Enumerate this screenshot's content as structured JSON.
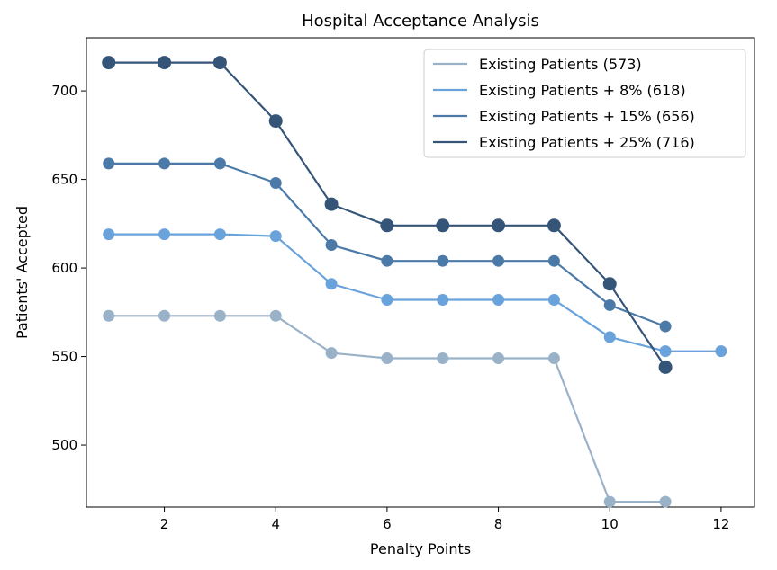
{
  "chart_data": {
    "type": "line",
    "title": "Hospital Acceptance Analysis",
    "xlabel": "Penalty Points",
    "ylabel": "Patients' Accepted",
    "xlim": [
      0.6,
      12.6
    ],
    "ylim": [
      465,
      730
    ],
    "xticks": [
      2,
      4,
      6,
      8,
      10,
      12
    ],
    "yticks": [
      500,
      550,
      600,
      650,
      700
    ],
    "grid": false,
    "legend_position": "top-right",
    "series": [
      {
        "name": "Existing Patients (573)",
        "color": "#9ab2c8",
        "marker_size": "normal",
        "x": [
          1,
          2,
          3,
          4,
          5,
          6,
          7,
          8,
          9,
          10,
          11
        ],
        "values": [
          573,
          573,
          573,
          573,
          552,
          549,
          549,
          549,
          549,
          468,
          468
        ]
      },
      {
        "name": "Existing Patients + 8% (618)",
        "color": "#6aa3dc",
        "marker_size": "normal",
        "x": [
          1,
          2,
          3,
          4,
          5,
          6,
          7,
          8,
          9,
          10,
          11,
          12
        ],
        "values": [
          619,
          619,
          619,
          618,
          591,
          582,
          582,
          582,
          582,
          561,
          553,
          553
        ]
      },
      {
        "name": "Existing Patients + 15% (656)",
        "color": "#4c7aa8",
        "marker_size": "normal",
        "x": [
          1,
          2,
          3,
          4,
          5,
          6,
          7,
          8,
          9,
          10,
          11
        ],
        "values": [
          659,
          659,
          659,
          648,
          613,
          604,
          604,
          604,
          604,
          579,
          567
        ]
      },
      {
        "name": "Existing Patients + 25% (716)",
        "color": "#355578",
        "marker_size": "large",
        "x": [
          1,
          2,
          3,
          4,
          5,
          6,
          7,
          8,
          9,
          10,
          11
        ],
        "values": [
          716,
          716,
          716,
          683,
          636,
          624,
          624,
          624,
          624,
          591,
          544
        ]
      }
    ]
  }
}
